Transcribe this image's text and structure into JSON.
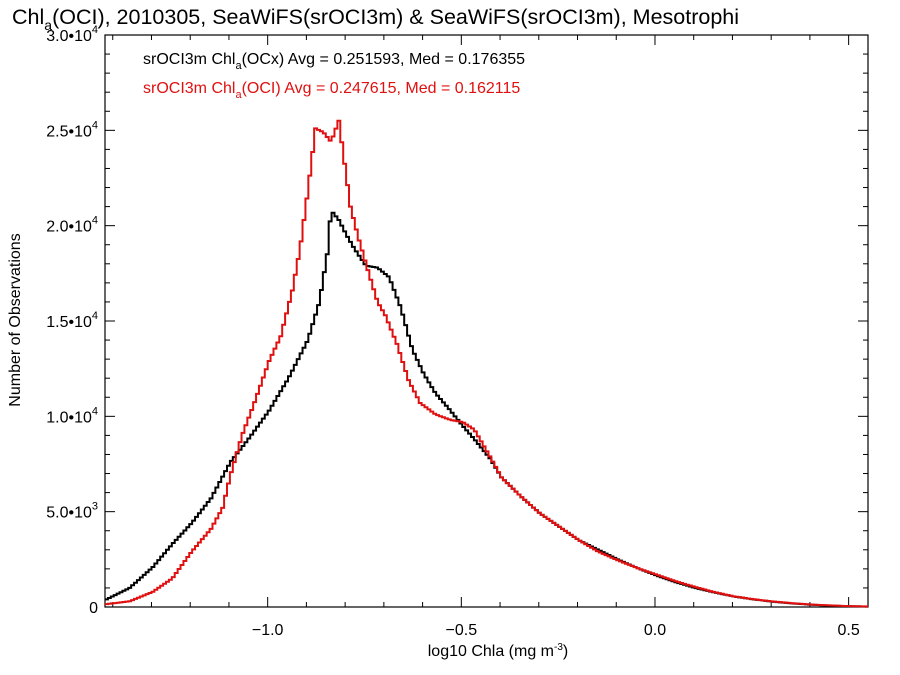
{
  "chart_data": {
    "type": "line",
    "title_parts": {
      "a": "Chl",
      "sub": "a",
      "b": "(OCI), 2010305, SeaWiFS(srOCI3m) & SeaWiFS(srOCI3m), Mesotrophi"
    },
    "xlabel_parts": {
      "a": "log10 Chla (mg m",
      "sup": "-3",
      "b": ")"
    },
    "ylabel": "Number of Observations",
    "xlim": [
      -1.42,
      0.55
    ],
    "ylim": [
      0,
      30000
    ],
    "x_ticks": [
      {
        "value": -1.0,
        "label": "−1.0"
      },
      {
        "value": -0.5,
        "label": "−0.5"
      },
      {
        "value": 0.0,
        "label": "0.0"
      },
      {
        "value": 0.5,
        "label": "0.5"
      }
    ],
    "y_ticks": [
      {
        "value": 0,
        "mant": "0",
        "exp": ""
      },
      {
        "value": 5000,
        "mant": "5.0•10",
        "exp": "3"
      },
      {
        "value": 10000,
        "mant": "1.0•10",
        "exp": "4"
      },
      {
        "value": 15000,
        "mant": "1.5•10",
        "exp": "4"
      },
      {
        "value": 20000,
        "mant": "2.0•10",
        "exp": "4"
      },
      {
        "value": 25000,
        "mant": "2.5•10",
        "exp": "4"
      },
      {
        "value": 30000,
        "mant": "3.0•10",
        "exp": "4"
      }
    ],
    "series": [
      {
        "color": "#000000",
        "legend": {
          "a": "srOCI3m Chl",
          "sub": "a",
          "b": "(OCx) Avg = 0.251593, Med = 0.176355"
        },
        "points": [
          [
            -1.42,
            400
          ],
          [
            -1.36,
            1000
          ],
          [
            -1.3,
            2100
          ],
          [
            -1.25,
            3300
          ],
          [
            -1.2,
            4400
          ],
          [
            -1.15,
            5700
          ],
          [
            -1.1,
            7600
          ],
          [
            -1.05,
            8900
          ],
          [
            -1.0,
            10300
          ],
          [
            -0.95,
            12000
          ],
          [
            -0.9,
            14000
          ],
          [
            -0.87,
            16000
          ],
          [
            -0.85,
            18500
          ],
          [
            -0.84,
            20800
          ],
          [
            -0.82,
            20300
          ],
          [
            -0.8,
            19500
          ],
          [
            -0.78,
            18800
          ],
          [
            -0.75,
            17900
          ],
          [
            -0.72,
            17800
          ],
          [
            -0.69,
            17300
          ],
          [
            -0.66,
            15700
          ],
          [
            -0.63,
            13500
          ],
          [
            -0.6,
            12200
          ],
          [
            -0.57,
            11200
          ],
          [
            -0.54,
            10500
          ],
          [
            -0.5,
            9500
          ],
          [
            -0.47,
            8800
          ],
          [
            -0.43,
            7800
          ],
          [
            -0.4,
            6800
          ],
          [
            -0.35,
            5800
          ],
          [
            -0.3,
            4900
          ],
          [
            -0.25,
            4200
          ],
          [
            -0.2,
            3500
          ],
          [
            -0.15,
            3000
          ],
          [
            -0.1,
            2500
          ],
          [
            -0.05,
            2050
          ],
          [
            0.0,
            1650
          ],
          [
            0.05,
            1300
          ],
          [
            0.1,
            1000
          ],
          [
            0.15,
            760
          ],
          [
            0.2,
            550
          ],
          [
            0.25,
            400
          ],
          [
            0.3,
            280
          ],
          [
            0.35,
            190
          ],
          [
            0.4,
            120
          ],
          [
            0.45,
            70
          ],
          [
            0.5,
            40
          ],
          [
            0.55,
            20
          ]
        ]
      },
      {
        "color": "#e01010",
        "legend": {
          "a": "srOCI3m Chl",
          "sub": "a",
          "b": "(OCI) Avg = 0.247615, Med = 0.162115"
        },
        "points": [
          [
            -1.42,
            150
          ],
          [
            -1.36,
            300
          ],
          [
            -1.3,
            800
          ],
          [
            -1.25,
            1500
          ],
          [
            -1.2,
            2900
          ],
          [
            -1.15,
            4100
          ],
          [
            -1.12,
            5200
          ],
          [
            -1.1,
            6900
          ],
          [
            -1.07,
            9000
          ],
          [
            -1.04,
            10600
          ],
          [
            -1.0,
            12900
          ],
          [
            -0.97,
            14200
          ],
          [
            -0.94,
            16600
          ],
          [
            -0.92,
            18800
          ],
          [
            -0.9,
            21800
          ],
          [
            -0.88,
            25100
          ],
          [
            -0.86,
            24900
          ],
          [
            -0.84,
            24400
          ],
          [
            -0.82,
            25500
          ],
          [
            -0.81,
            24000
          ],
          [
            -0.79,
            21000
          ],
          [
            -0.77,
            19400
          ],
          [
            -0.75,
            18000
          ],
          [
            -0.72,
            16000
          ],
          [
            -0.7,
            15300
          ],
          [
            -0.67,
            13800
          ],
          [
            -0.64,
            11900
          ],
          [
            -0.61,
            10700
          ],
          [
            -0.57,
            10100
          ],
          [
            -0.53,
            9800
          ],
          [
            -0.5,
            9700
          ],
          [
            -0.47,
            9300
          ],
          [
            -0.43,
            7900
          ],
          [
            -0.4,
            6800
          ],
          [
            -0.35,
            5800
          ],
          [
            -0.3,
            4900
          ],
          [
            -0.25,
            4200
          ],
          [
            -0.2,
            3500
          ],
          [
            -0.15,
            2900
          ],
          [
            -0.1,
            2450
          ],
          [
            -0.05,
            2050
          ],
          [
            0.0,
            1700
          ],
          [
            0.05,
            1350
          ],
          [
            0.1,
            1050
          ],
          [
            0.15,
            780
          ],
          [
            0.2,
            560
          ],
          [
            0.25,
            410
          ],
          [
            0.3,
            290
          ],
          [
            0.35,
            200
          ],
          [
            0.4,
            130
          ],
          [
            0.45,
            80
          ],
          [
            0.5,
            45
          ],
          [
            0.55,
            25
          ]
        ]
      }
    ]
  }
}
